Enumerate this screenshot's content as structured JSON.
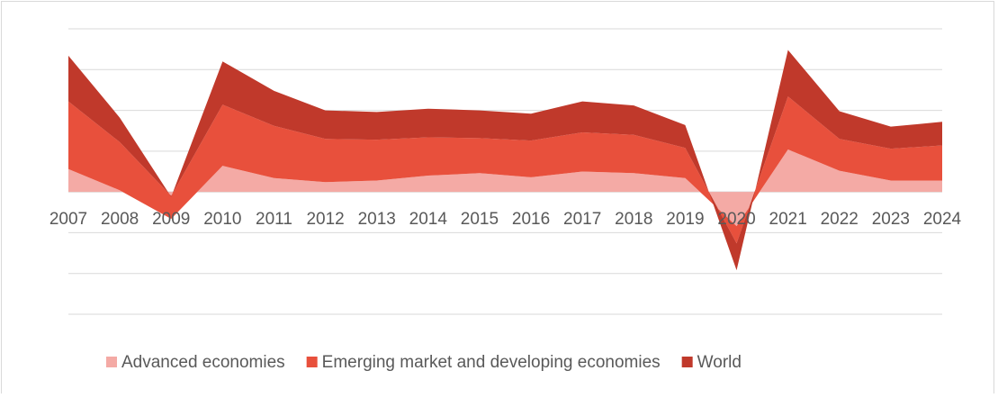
{
  "chart_data": {
    "type": "stacked_area",
    "categories": [
      "2007",
      "2008",
      "2009",
      "2010",
      "2011",
      "2012",
      "2013",
      "2014",
      "2015",
      "2016",
      "2017",
      "2018",
      "2019",
      "2020",
      "2021",
      "2022",
      "2023",
      "2024"
    ],
    "series": [
      {
        "name": "Advanced economies",
        "color": "#f4aaa5",
        "values": [
          2.8,
          0.2,
          -3.3,
          3.2,
          1.7,
          1.2,
          1.4,
          2.0,
          2.3,
          1.8,
          2.5,
          2.3,
          1.7,
          -4.2,
          5.2,
          2.6,
          1.4,
          1.4
        ]
      },
      {
        "name": "Emerging market and developing economies",
        "color": "#e8503c",
        "values": [
          8.3,
          5.9,
          2.8,
          7.5,
          6.4,
          5.3,
          5.0,
          4.7,
          4.3,
          4.5,
          4.8,
          4.7,
          3.7,
          -2.1,
          6.5,
          3.9,
          3.9,
          4.3
        ]
      },
      {
        "name": "World",
        "color": "#c0392b",
        "values": [
          5.6,
          3.0,
          -0.1,
          5.3,
          4.3,
          3.5,
          3.4,
          3.5,
          3.4,
          3.3,
          3.8,
          3.6,
          2.8,
          -3.3,
          5.7,
          3.4,
          2.7,
          2.9
        ]
      }
    ],
    "ylim": [
      -15,
      20
    ],
    "yticks": [
      -15,
      -10,
      -5,
      0,
      5,
      10,
      15,
      20
    ],
    "grid": true,
    "legend": "bottom"
  }
}
